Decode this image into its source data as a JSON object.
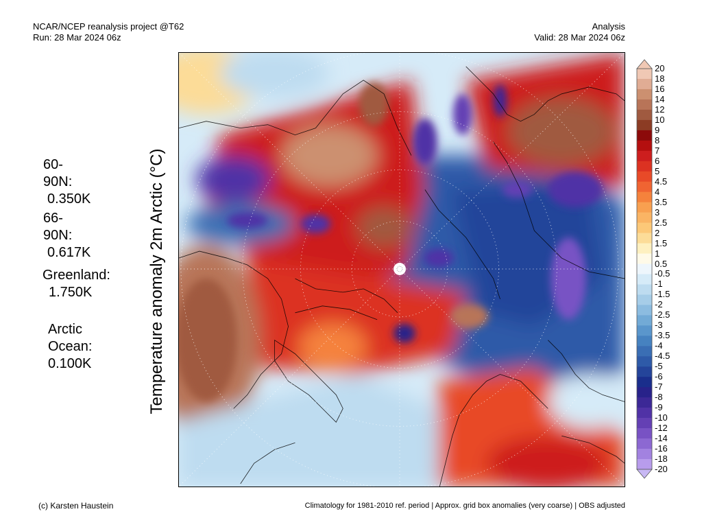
{
  "header": {
    "left_line1": "NCAR/NCEP reanalysis project @T62",
    "left_line2": "Run: 28 Mar 2024 06z",
    "right_line1": "Analysis",
    "right_line2": "Valid: 28 Mar 2024 06z"
  },
  "y_axis_label": "Temperature anomaly 2m Arctic (°C)",
  "stats": [
    {
      "label": "60-90N:",
      "value": "0.350K"
    },
    {
      "label": "66-90N:",
      "value": "0.617K"
    },
    {
      "label": "Greenland:",
      "value": "1.750K"
    },
    {
      "label": "Arctic",
      "label2": "Ocean:",
      "value": "0.100K"
    }
  ],
  "colorbar": {
    "labels": [
      "20",
      "18",
      "16",
      "14",
      "12",
      "10",
      "9",
      "8",
      "7",
      "6",
      "5",
      "4.5",
      "4",
      "3.5",
      "3",
      "2.5",
      "2",
      "1.5",
      "1",
      "0.5",
      "-0.5",
      "-1",
      "-1.5",
      "-2",
      "-2.5",
      "-3",
      "-3.5",
      "-4",
      "-4.5",
      "-5",
      "-6",
      "-7",
      "-8",
      "-9",
      "-10",
      "-12",
      "-14",
      "-16",
      "-18",
      "-20"
    ],
    "colors": [
      "#f0c8b4",
      "#e0ac94",
      "#cc9070",
      "#b87458",
      "#a05a40",
      "#8c3c24",
      "#8c0a0a",
      "#b40f0f",
      "#cd1e1e",
      "#dc3222",
      "#e84a28",
      "#f06432",
      "#f5823c",
      "#f8a050",
      "#fab464",
      "#fcc878",
      "#fcdc98",
      "#fef0c0",
      "#fffae8",
      "#eef6fc",
      "#d6ebf8",
      "#bedcf0",
      "#a6cde8",
      "#8cbce0",
      "#72aad6",
      "#5a96cc",
      "#4682c0",
      "#3a6eb4",
      "#2e5aa8",
      "#24449a",
      "#1a2e8c",
      "#28228a",
      "#3c2896",
      "#5032a6",
      "#6440b4",
      "#7852c4",
      "#8c68d2",
      "#a282e0",
      "#b89cec"
    ]
  },
  "footer": {
    "left": "(c) Karsten Haustein",
    "right": "Climatology for 1981-2010 ref. period | Approx. grid box anomalies (very coarse) | OBS adjusted"
  }
}
